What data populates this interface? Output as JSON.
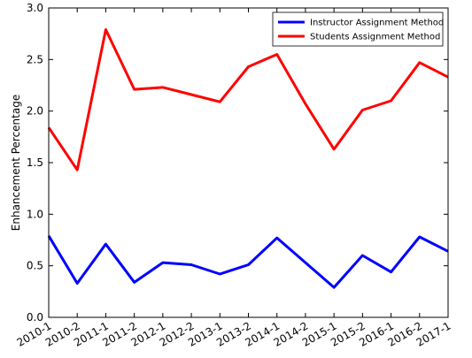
{
  "chart_data": {
    "type": "line",
    "ylabel": "Enhancement Percentage",
    "categories": [
      "2010-1",
      "2010-2",
      "2011-1",
      "2011-2",
      "2012-1",
      "2012-2",
      "2013-1",
      "2013-2",
      "2014-1",
      "2014-2",
      "2015-1",
      "2015-2",
      "2016-1",
      "2016-2",
      "2017-1"
    ],
    "series": [
      {
        "name": "Instructor Assignment Method",
        "color": "#0000ff",
        "values": [
          0.79,
          0.33,
          0.71,
          0.34,
          0.53,
          0.51,
          0.42,
          0.51,
          0.77,
          0.53,
          0.29,
          0.6,
          0.44,
          0.78,
          0.64
        ]
      },
      {
        "name": "Students Assignment Method",
        "color": "#ff0000",
        "values": [
          1.84,
          1.43,
          2.79,
          2.21,
          2.23,
          2.16,
          2.09,
          2.43,
          2.55,
          2.07,
          1.63,
          2.01,
          2.1,
          2.47,
          2.33
        ]
      }
    ],
    "ylim": [
      0,
      3
    ],
    "yticks": [
      {
        "value": 0,
        "label": "0.0"
      },
      0.5,
      {
        "value": 1,
        "label": "1.0"
      },
      1.5,
      {
        "value": 2,
        "label": "2.0"
      },
      2.5,
      {
        "value": 3,
        "label": "3.0"
      }
    ],
    "legend": "upper right"
  }
}
